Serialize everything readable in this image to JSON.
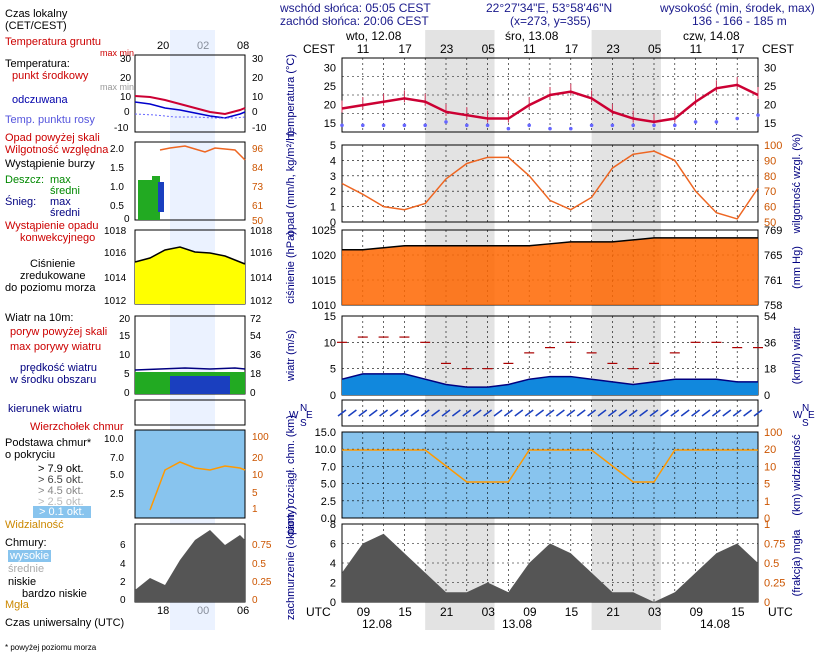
{
  "header": {
    "sunrise": "wschód słońca: 05:05 CEST",
    "sunset": "zachód słońca: 20:06 CEST",
    "coords": "22°27'34\"E, 53°58'46\"N",
    "grid": "(x=273, y=355)",
    "alt_label": "wysokość (min, środek, max)",
    "alt_values": "136 - 166 - 185 m"
  },
  "time_axis": {
    "cest_label": "CEST",
    "local_ticks": [
      "11",
      "17",
      "23",
      "05",
      "11",
      "17",
      "23",
      "05",
      "11",
      "17"
    ],
    "utc_label": "UTC",
    "utc_ticks": [
      "09",
      "15",
      "21",
      "03",
      "09",
      "15",
      "21",
      "03",
      "09",
      "15"
    ],
    "days_top": [
      "wto, 12.08",
      "śro, 13.08",
      "czw, 14.08"
    ],
    "days_bottom": [
      "12.08",
      "13.08",
      "14.08"
    ]
  },
  "legend": {
    "local_time": "Czas lokalny",
    "local_time_sub": "(CET/CEST)",
    "local_ticks": [
      "20",
      "02",
      "08"
    ],
    "soil_temp": "Temperatura gruntu",
    "soil_minmax": "max min",
    "temp": "Temperatura:",
    "temp_mid": "punkt środkowy",
    "temp_minmax": "max min",
    "felt": "odczuwana",
    "dew": "Temp. punktu rosy",
    "precip_over": "Opad powyżej skali",
    "humidity": "Wilgotność względna",
    "storm": "Wystąpienie burzy",
    "rain": "Deszcz:",
    "rain_max": "max",
    "rain_mid": "średni",
    "snow": "Śnieg:",
    "snow_max": "max",
    "snow_mid": "średni",
    "precip_occ": "Wystąpienie opadu",
    "precip_conv": "konwekcyjnego",
    "pressure": "Ciśnienie",
    "pressure_sub1": "zredukowane",
    "pressure_sub2": "do poziomu morza",
    "wind10": "Wiatr na 10m:",
    "gust_over": "poryw powyżej skali",
    "gust_max": "max porywy wiatru",
    "wind_mean": "prędkość wiatru",
    "wind_mean_sub": "w środku obszaru",
    "wind_dir": "kierunek wiatru",
    "cape": "Wierzchołek chmur",
    "cloud_base": "Podstawa chmur*",
    "cloud_base_sub": "o pokryciu",
    "okt1": "> 7.9 okt.",
    "okt2": "> 6.5 okt.",
    "okt3": "> 4.5 okt.",
    "okt4": "> 2.5 okt.",
    "okt5": "> 0.1 okt.",
    "visibility": "Widzialność",
    "clouds": "Chmury:",
    "high": "wysokie",
    "mid": "średnie",
    "low": "niskie",
    "vlow": "bardzo niskie",
    "fog": "Mgła",
    "utc_time": "Czas uniwersalny (UTC)",
    "utc_ticks": [
      "18",
      "00",
      "06"
    ],
    "footnote": "* powyżej poziomu morza"
  },
  "panels": {
    "temp": {
      "ylabel": "temperatura (°C)",
      "yticks": [
        "30",
        "25",
        "20",
        "15"
      ],
      "legend_yticks": [
        "30",
        "20",
        "10",
        "0",
        "-10"
      ]
    },
    "precip": {
      "ylabel": "opad (mm/h, kg/m²/h)",
      "yticks": [
        "5",
        "4",
        "3",
        "2",
        "1",
        "0"
      ],
      "rlabel": "wilgotność wzgl. (%)",
      "rticks": [
        "100",
        "90",
        "80",
        "70",
        "60",
        "50"
      ],
      "legend_yticks": [
        "2.0",
        "1.5",
        "1.0",
        "0.5",
        "0"
      ],
      "legend_rticks": [
        "96",
        "84",
        "73",
        "61",
        "50"
      ]
    },
    "pressure": {
      "ylabel": "ciśnienie (hPa)",
      "yticks": [
        "1025",
        "1020",
        "1015",
        "1010"
      ],
      "rlabel": "(mm Hg)",
      "rticks": [
        "769",
        "765",
        "761",
        "758"
      ],
      "legend_yticks": [
        "1018",
        "1016",
        "1014",
        "1012"
      ]
    },
    "wind": {
      "ylabel": "wiatr (m/s)",
      "yticks": [
        "15",
        "10",
        "5",
        "0"
      ],
      "rlabel": "(km/h) wiatr",
      "rticks": [
        "54",
        "36",
        "18",
        "0"
      ],
      "legend_yticks": [
        "20",
        "15",
        "10",
        "5",
        "0"
      ],
      "legend_rticks": [
        "72",
        "54",
        "36",
        "18",
        "0"
      ]
    },
    "dir": {
      "letters": [
        "N",
        "W",
        "E",
        "S"
      ]
    },
    "cloud": {
      "ylabel": "pion. rozciągł. chm. (km)",
      "yticks": [
        "15.0",
        "10.0",
        "7.0",
        "5.0",
        "2.5",
        "0.0"
      ],
      "rlabel": "(km) widzialność",
      "rticks": [
        "100",
        "20",
        "10",
        "5",
        "1",
        "0"
      ],
      "legend_yticks": [
        "10.0",
        "7.0",
        "5.0",
        "2.5"
      ],
      "legend_rticks": [
        "100",
        "20",
        "10",
        "5",
        "1"
      ]
    },
    "cover": {
      "ylabel": "zachmurzenie (oktanty)",
      "yticks": [
        "8",
        "6",
        "4",
        "2",
        "0"
      ],
      "rlabel": "(frakcja) mgła",
      "rticks": [
        "1",
        "0.75",
        "0.5",
        "0.25",
        "0"
      ]
    }
  },
  "chart_data": {
    "type": "line",
    "time_utc_hours_from_start": [
      0,
      3,
      6,
      9,
      12,
      15,
      18,
      21,
      24,
      27,
      30,
      33,
      36,
      39,
      42,
      45,
      48,
      51,
      54,
      57,
      60
    ],
    "x_start_utc": "12.08 06:00",
    "series": [
      {
        "name": "temperatura",
        "values": [
          17,
          18,
          19,
          20,
          19,
          16,
          15,
          14,
          14,
          18,
          21,
          22,
          20,
          16,
          14,
          13,
          14,
          19,
          23,
          24,
          21
        ]
      },
      {
        "name": "temp. punktu rosy",
        "values": [
          12,
          12,
          12,
          12,
          12,
          13,
          12,
          12,
          11,
          12,
          11,
          11,
          12,
          12,
          12,
          12,
          12,
          13,
          13,
          14,
          15
        ]
      },
      {
        "name": "wilgotność względna",
        "values": [
          75,
          68,
          60,
          58,
          62,
          78,
          88,
          92,
          92,
          80,
          64,
          58,
          66,
          85,
          94,
          96,
          90,
          70,
          56,
          52,
          72
        ]
      },
      {
        "name": "ciśnienie",
        "values": [
          1022,
          1022,
          1022.5,
          1023,
          1023,
          1023,
          1023,
          1023,
          1023,
          1023,
          1023.5,
          1024,
          1024,
          1024,
          1024.5,
          1025,
          1025,
          1025,
          1025,
          1025,
          1025
        ]
      },
      {
        "name": "prędkość wiatru",
        "values": [
          3,
          4,
          4,
          4,
          3,
          2,
          1.5,
          1.5,
          2,
          3,
          3.5,
          3.5,
          3,
          2.5,
          2,
          2.5,
          3,
          3,
          3,
          2.5,
          2.5
        ]
      },
      {
        "name": "max porywy wiatru",
        "values": [
          10,
          11,
          11,
          11,
          10,
          6,
          5,
          5,
          6,
          8,
          9,
          10,
          8,
          6,
          5,
          6,
          8,
          10,
          10,
          9,
          9
        ]
      },
      {
        "name": "widzialność",
        "values": [
          20,
          20,
          20,
          20,
          20,
          10,
          5,
          5,
          5,
          20,
          20,
          20,
          20,
          10,
          5,
          5,
          20,
          20,
          20,
          20,
          20
        ]
      },
      {
        "name": "zachmurzenie",
        "values": [
          3,
          6,
          7,
          5,
          3,
          1,
          1,
          2,
          1,
          4,
          6,
          5,
          3,
          1,
          1,
          0,
          1,
          3,
          5,
          6,
          4
        ]
      }
    ],
    "temp_ylim": [
      10,
      32
    ],
    "precip_ylim": [
      0,
      5
    ],
    "rh_ylim": [
      50,
      100
    ],
    "pressure_ylim": [
      1008,
      1027
    ],
    "wind_ylim": [
      0,
      15
    ],
    "cover_ylim": [
      0,
      8
    ],
    "colors": {
      "temp": "#cc0033",
      "dew": "#6666ff",
      "rh": "#ee6622",
      "pressure": "#ff6600",
      "wind": "#1188dd",
      "cloud_bg": "#88c4ee",
      "night": "#cccccc"
    }
  }
}
